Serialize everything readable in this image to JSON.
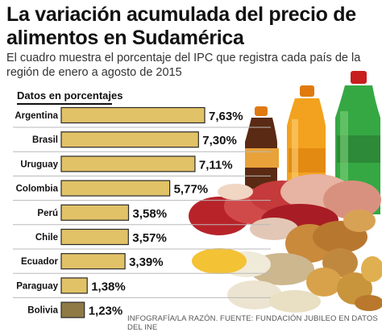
{
  "title": "La variación acumulada del precio de alimentos en Sudamérica",
  "subtitle": "El cuadro muestra el porcentaje del IPC que registra cada país de la región de enero a agosto de 2015",
  "legend_label": "Datos en porcentajes",
  "source": "INFOGRAFÍA/LA RAZÓN. FUENTE: FUNDACIÓN JUBILEO EN DATOS DEL INE",
  "colors": {
    "bar": "#e2c267",
    "bar_highlight": "#8f7a45",
    "bar_border": "#2a2a2a"
  },
  "chart_data": {
    "type": "bar",
    "orientation": "horizontal",
    "categories": [
      "Argentina",
      "Brasil",
      "Uruguay",
      "Colombia",
      "Perú",
      "Chile",
      "Ecuador",
      "Paraguay",
      "Bolivia"
    ],
    "values": [
      7.63,
      7.3,
      7.11,
      5.77,
      3.58,
      3.57,
      3.39,
      1.38,
      1.23
    ],
    "labels": [
      "7,63%",
      "7,30%",
      "7,11%",
      "5,77%",
      "3,58%",
      "3,57%",
      "3,39%",
      "1,38%",
      "1,23%"
    ],
    "highlight": "Bolivia",
    "xlim": [
      0,
      7.63
    ]
  }
}
